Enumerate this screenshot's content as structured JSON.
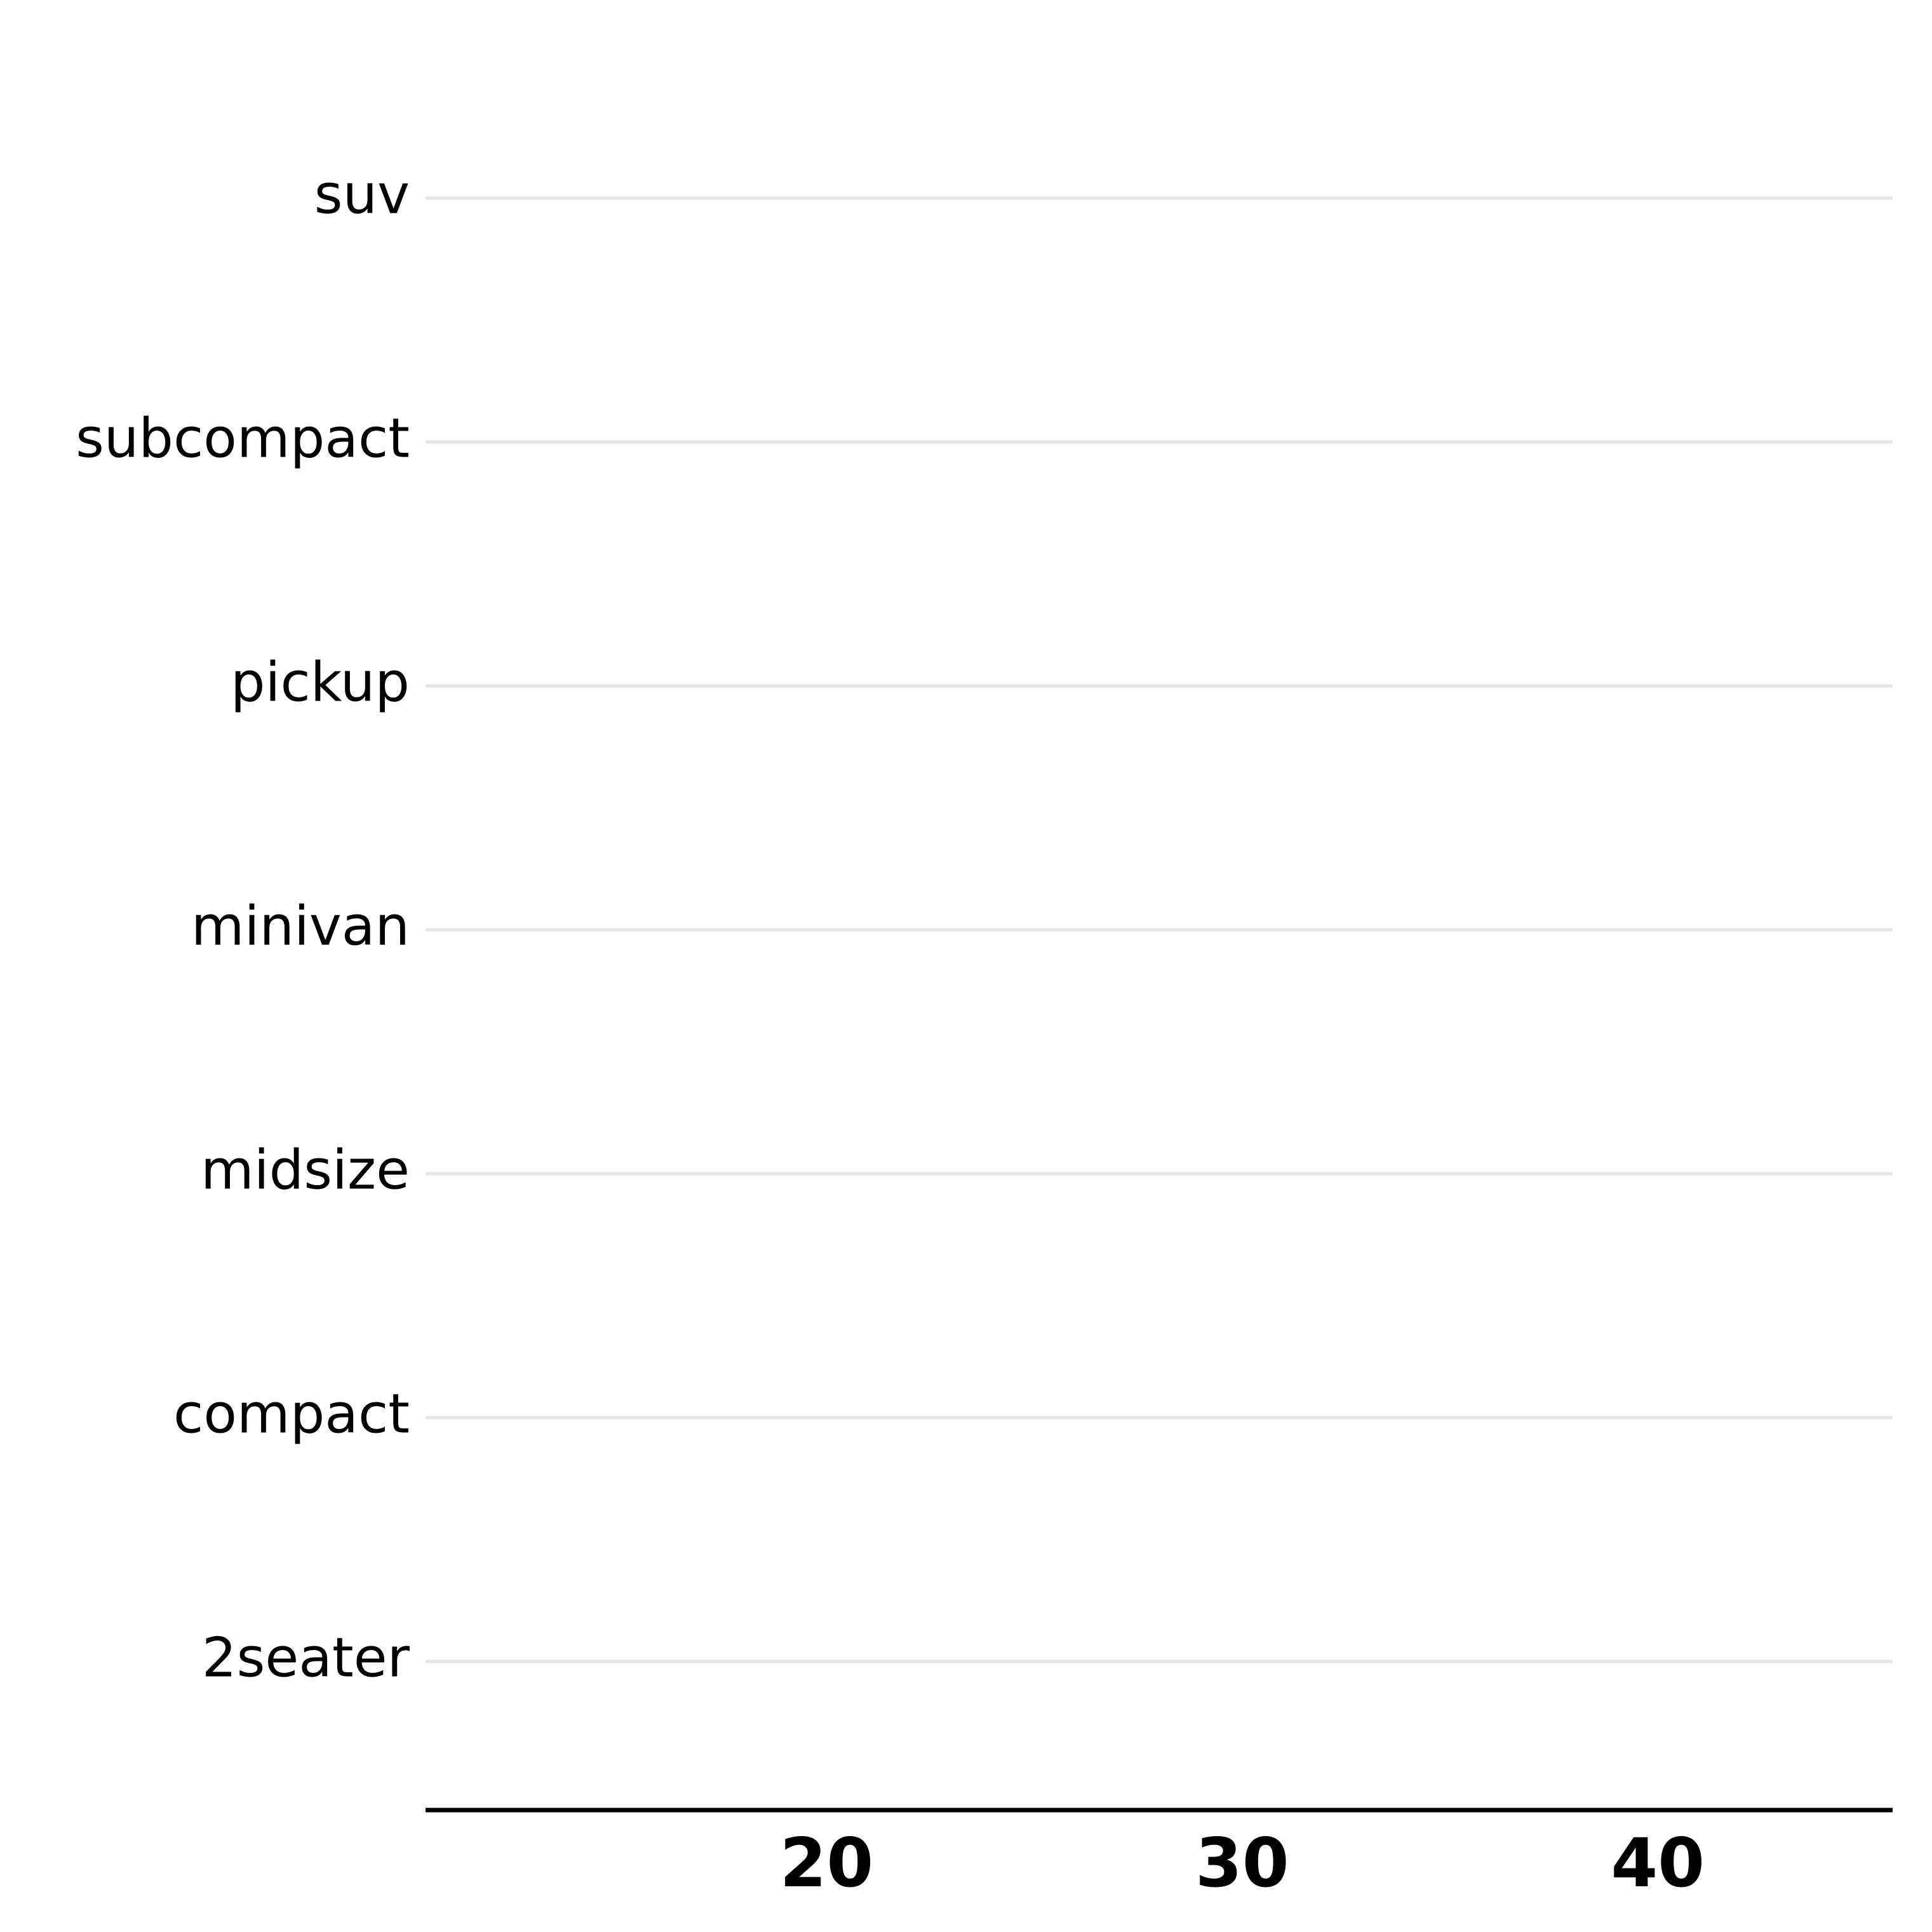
{
  "chart_data": {
    "type": "scatter",
    "title": "",
    "xlabel": "",
    "ylabel": "",
    "categories": [
      "2seater",
      "compact",
      "midsize",
      "minivan",
      "pickup",
      "subcompact",
      "suv"
    ],
    "x_ticks": [
      "20",
      "30",
      "40"
    ],
    "x_tick_values": [
      20,
      30,
      40
    ],
    "xlim": [
      10.35,
      45.65
    ],
    "series": [],
    "grid": "horizontal major gridlines only",
    "legend": "none",
    "colors": {
      "background": "#ffffff",
      "gridline": "#e6e6e6",
      "axis_line": "#000000",
      "text": "#000000"
    }
  }
}
